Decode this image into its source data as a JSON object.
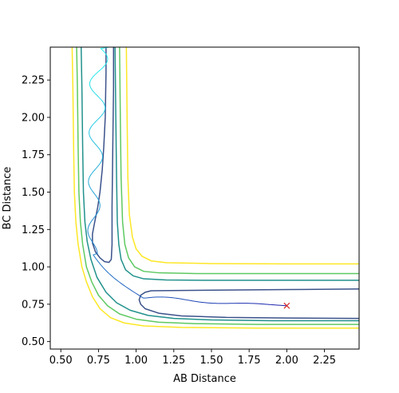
{
  "chart_data": {
    "type": "line",
    "title": "",
    "xlabel": "AB Distance",
    "ylabel": "BC Distance",
    "xlim": [
      0.43,
      2.48
    ],
    "ylim": [
      0.45,
      2.47
    ],
    "xticks": [
      0.5,
      0.75,
      1.0,
      1.25,
      1.5,
      1.75,
      2.0,
      2.25
    ],
    "xtick_labels": [
      "0.50",
      "0.75",
      "1.00",
      "1.25",
      "1.50",
      "1.75",
      "2.00",
      "2.25"
    ],
    "yticks": [
      0.5,
      0.75,
      1.0,
      1.25,
      1.5,
      1.75,
      2.0,
      2.25
    ],
    "ytick_labels": [
      "0.50",
      "0.75",
      "1.00",
      "1.25",
      "1.50",
      "1.75",
      "2.00",
      "2.25"
    ],
    "grid": false,
    "legend": "none",
    "contours": [
      {
        "color": "#fde725",
        "points": [
          [
            0.575,
            2.47
          ],
          [
            0.58,
            2.2
          ],
          [
            0.585,
            1.8
          ],
          [
            0.59,
            1.5
          ],
          [
            0.6,
            1.3
          ],
          [
            0.615,
            1.15
          ],
          [
            0.64,
            1.0
          ],
          [
            0.67,
            0.9
          ],
          [
            0.71,
            0.8
          ],
          [
            0.76,
            0.72
          ],
          [
            0.83,
            0.66
          ],
          [
            0.92,
            0.625
          ],
          [
            1.05,
            0.605
          ],
          [
            1.3,
            0.595
          ],
          [
            1.8,
            0.59
          ],
          [
            2.48,
            0.59
          ]
        ]
      },
      {
        "color": "#5ec962",
        "points": [
          [
            0.605,
            2.47
          ],
          [
            0.61,
            2.2
          ],
          [
            0.615,
            1.8
          ],
          [
            0.62,
            1.5
          ],
          [
            0.63,
            1.3
          ],
          [
            0.645,
            1.15
          ],
          [
            0.67,
            1.0
          ],
          [
            0.705,
            0.9
          ],
          [
            0.75,
            0.81
          ],
          [
            0.81,
            0.74
          ],
          [
            0.89,
            0.685
          ],
          [
            1.0,
            0.65
          ],
          [
            1.15,
            0.63
          ],
          [
            1.4,
            0.62
          ],
          [
            1.8,
            0.615
          ],
          [
            2.48,
            0.615
          ]
        ]
      },
      {
        "color": "#21918c",
        "points": [
          [
            0.635,
            2.47
          ],
          [
            0.64,
            2.2
          ],
          [
            0.645,
            1.8
          ],
          [
            0.65,
            1.5
          ],
          [
            0.66,
            1.3
          ],
          [
            0.675,
            1.17
          ],
          [
            0.7,
            1.05
          ],
          [
            0.74,
            0.93
          ],
          [
            0.8,
            0.83
          ],
          [
            0.87,
            0.76
          ],
          [
            0.96,
            0.71
          ],
          [
            1.08,
            0.675
          ],
          [
            1.25,
            0.655
          ],
          [
            1.5,
            0.645
          ],
          [
            1.9,
            0.64
          ],
          [
            2.48,
            0.64
          ]
        ]
      },
      {
        "color": "#3b528b",
        "points": [
          [
            0.8,
            2.47
          ],
          [
            0.8,
            2.3
          ],
          [
            0.795,
            2.0
          ],
          [
            0.785,
            1.8
          ],
          [
            0.775,
            1.65
          ],
          [
            0.76,
            1.5
          ],
          [
            0.745,
            1.4
          ],
          [
            0.725,
            1.3
          ],
          [
            0.71,
            1.22
          ],
          [
            0.71,
            1.16
          ],
          [
            0.73,
            1.1
          ],
          [
            0.76,
            1.06
          ],
          [
            0.79,
            1.035
          ],
          [
            0.82,
            1.03
          ],
          [
            0.835,
            1.05
          ],
          [
            0.84,
            1.15
          ],
          [
            0.84,
            1.4
          ],
          [
            0.845,
            1.8
          ],
          [
            0.85,
            2.2
          ],
          [
            0.85,
            2.47
          ]
        ]
      },
      {
        "color": "#3b528b",
        "points": [
          [
            2.48,
            0.655
          ],
          [
            2.0,
            0.658
          ],
          [
            1.6,
            0.662
          ],
          [
            1.3,
            0.672
          ],
          [
            1.15,
            0.69
          ],
          [
            1.06,
            0.72
          ],
          [
            1.03,
            0.75
          ],
          [
            1.02,
            0.78
          ],
          [
            1.03,
            0.81
          ],
          [
            1.06,
            0.83
          ],
          [
            1.1,
            0.84
          ],
          [
            1.3,
            0.842
          ],
          [
            1.6,
            0.845
          ],
          [
            2.0,
            0.848
          ],
          [
            2.48,
            0.852
          ]
        ]
      },
      {
        "color": "#21918c",
        "points": [
          [
            0.86,
            2.47
          ],
          [
            0.865,
            2.0
          ],
          [
            0.87,
            1.6
          ],
          [
            0.875,
            1.3
          ],
          [
            0.885,
            1.15
          ],
          [
            0.9,
            1.05
          ],
          [
            0.93,
            0.98
          ],
          [
            0.98,
            0.94
          ],
          [
            1.05,
            0.92
          ],
          [
            1.2,
            0.912
          ],
          [
            1.5,
            0.91
          ],
          [
            2.0,
            0.91
          ],
          [
            2.48,
            0.91
          ]
        ]
      },
      {
        "color": "#5ec962",
        "points": [
          [
            0.89,
            2.47
          ],
          [
            0.895,
            2.0
          ],
          [
            0.9,
            1.6
          ],
          [
            0.91,
            1.3
          ],
          [
            0.925,
            1.15
          ],
          [
            0.95,
            1.06
          ],
          [
            0.99,
            1.0
          ],
          [
            1.05,
            0.97
          ],
          [
            1.15,
            0.96
          ],
          [
            1.4,
            0.955
          ],
          [
            1.9,
            0.955
          ],
          [
            2.48,
            0.955
          ]
        ]
      },
      {
        "color": "#fde725",
        "points": [
          [
            0.935,
            2.47
          ],
          [
            0.94,
            2.0
          ],
          [
            0.945,
            1.6
          ],
          [
            0.955,
            1.35
          ],
          [
            0.975,
            1.2
          ],
          [
            1.0,
            1.12
          ],
          [
            1.04,
            1.07
          ],
          [
            1.1,
            1.04
          ],
          [
            1.2,
            1.028
          ],
          [
            1.5,
            1.022
          ],
          [
            2.0,
            1.02
          ],
          [
            2.48,
            1.02
          ]
        ]
      }
    ],
    "trajectory": {
      "color_start": "#2cf2f2",
      "color_end": "#1a1aa8",
      "start": [
        0.82,
        2.47
      ],
      "end": [
        2.0,
        0.74
      ]
    },
    "marker": {
      "x": 2.0,
      "y": 0.74,
      "symbol": "x",
      "color": "#d62728"
    }
  }
}
